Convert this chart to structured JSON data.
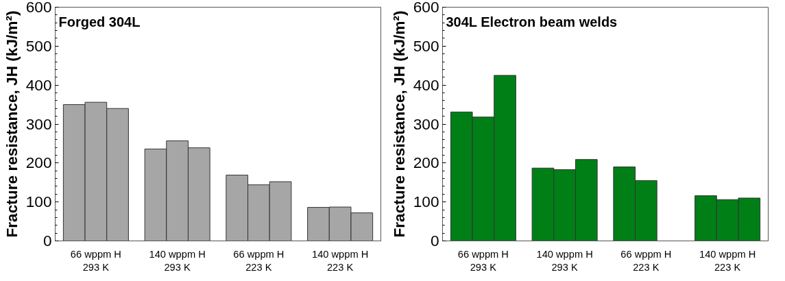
{
  "chart_data": [
    {
      "type": "bar",
      "title": "Forged 304L",
      "ylabel": "Fracture resistance, JH (kJ/m²)",
      "categories": [
        "66 wppm H\n293 K",
        "140 wppm H\n293 K",
        "66 wppm H\n223 K",
        "140 wppm H\n223 K"
      ],
      "series": [
        {
          "color": "#a6a6a6",
          "values": [
            350,
            236,
            169,
            86
          ]
        },
        {
          "color": "#a6a6a6",
          "values": [
            356,
            257,
            144,
            87
          ]
        },
        {
          "color": "#a6a6a6",
          "values": [
            340,
            239,
            152,
            72
          ]
        }
      ],
      "ylim": [
        0,
        600
      ],
      "yticks": [
        0,
        100,
        200,
        300,
        400,
        500,
        600
      ],
      "grid": false
    },
    {
      "type": "bar",
      "title": "304L Electron beam welds",
      "ylabel": "Fracture resistance, JH (kJ/m²)",
      "categories": [
        "66 wppm H\n293 K",
        "140 wppm H\n293 K",
        "66 wppm H\n223 K",
        "140 wppm H\n223 K"
      ],
      "series": [
        {
          "color": "#007f17",
          "values": [
            331,
            187,
            190,
            116
          ]
        },
        {
          "color": "#007f17",
          "values": [
            318,
            183,
            155,
            106
          ]
        },
        {
          "color": "#007f17",
          "values": [
            425,
            209,
            null,
            110
          ]
        }
      ],
      "ylim": [
        0,
        600
      ],
      "yticks": [
        0,
        100,
        200,
        300,
        400,
        500,
        600
      ],
      "grid": false
    }
  ]
}
